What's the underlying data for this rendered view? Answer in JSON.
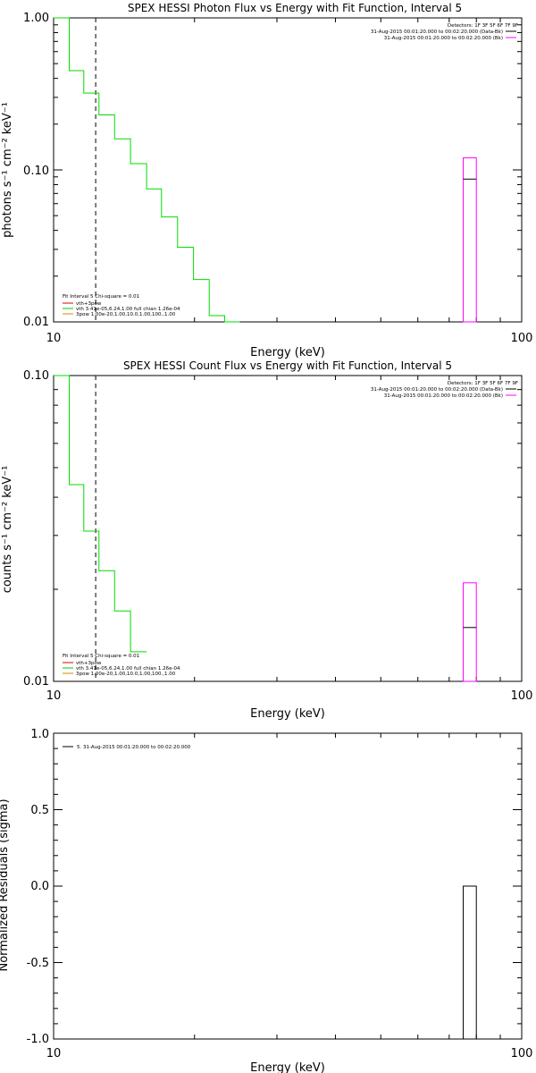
{
  "colors": {
    "background": "#ffffff",
    "axes": "#000000",
    "data": "#00dd00",
    "background_model": "#ff00ff",
    "fit": "#000000",
    "legend_red": "#dd0000",
    "legend_green": "#00cc00",
    "legend_orange": "#dd8800"
  },
  "chart_data": [
    {
      "type": "line",
      "title": "SPEX HESSI Photon Flux vs Energy with Fit Function, Interval 5",
      "xlabel": "Energy (keV)",
      "ylabel": "photons s⁻¹ cm⁻² keV⁻¹",
      "xscale": "log",
      "yscale": "log",
      "xlim": [
        10,
        100
      ],
      "ylim": [
        0.01,
        1.0
      ],
      "xticks": [
        "10",
        "100"
      ],
      "yticks": [
        "0.01",
        "0.10",
        "1.00"
      ],
      "vline_x": 12.3,
      "detectors_text": "Detectors: 1F 3F 5F 6F 7F 9F",
      "top_legend": [
        {
          "text": "31-Aug-2015 00:01:20.000 to 00:02:20.000 (Data-Bk)",
          "color": "#000000"
        },
        {
          "text": "31-Aug-2015 00:01:20.000 to 00:02:20.000 (Bk)",
          "color": "#ff00ff"
        }
      ],
      "fit_text": [
        "Fit Interval 5   Chi-square = 0.01",
        "vth+3pow",
        "vth 3.41e-05,6.24,1.00   full chian 1.26e-04",
        "3pow 1.00e-20,1.00,10.0,1.00,100.,1.00"
      ],
      "fit_colors": [
        "#000000",
        "#dd0000",
        "#00cc00",
        "#dd8800"
      ],
      "series": [
        {
          "edges": [
            10.0,
            10.8,
            11.6,
            12.5,
            13.5,
            14.6,
            15.8,
            17.0,
            18.4,
            19.9,
            21.5,
            23.2,
            25.0
          ],
          "values": [
            1.0,
            0.45,
            0.32,
            0.23,
            0.16,
            0.11,
            0.075,
            0.049,
            0.031,
            0.019,
            0.011,
            0.0095,
            0.0095
          ],
          "color": "#00dd00"
        }
      ],
      "bk_bar": {
        "x0": 75.0,
        "x1": 80.0,
        "top": 0.12,
        "mid": 0.087
      }
    },
    {
      "type": "line",
      "title": "SPEX HESSI Count Flux vs Energy with Fit Function, Interval 5",
      "xlabel": "Energy (keV)",
      "ylabel": "counts s⁻¹ cm⁻² keV⁻¹",
      "xscale": "log",
      "yscale": "log",
      "xlim": [
        10,
        100
      ],
      "ylim": [
        0.01,
        0.1
      ],
      "xticks": [
        "10",
        "100"
      ],
      "yticks": [
        "0.01",
        "0.10"
      ],
      "vline_x": 12.3,
      "detectors_text": "Detectors: 1F 3F 5F 6F 7F 9F",
      "top_legend": [
        {
          "text": "31-Aug-2015 00:01:20.000 to 00:02:20.000 (Data-Bk)",
          "color": "#000000"
        },
        {
          "text": "31-Aug-2015 00:01:20.000 to 00:02:20.000 (Bk)",
          "color": "#ff00ff"
        }
      ],
      "fit_text": [
        "Fit Interval 5   Chi-square = 0.01",
        "vth+3pow",
        "vth 3.41e-05,6.24,1.00   full chian 1.26e-04",
        "3pow 1.00e-20,1.00,10.0,1.00,100.,1.00"
      ],
      "fit_colors": [
        "#000000",
        "#dd0000",
        "#00cc00",
        "#dd8800"
      ],
      "series": [
        {
          "edges": [
            10.0,
            10.8,
            11.6,
            12.5,
            13.5,
            14.6,
            15.8
          ],
          "values": [
            0.1,
            0.044,
            0.031,
            0.023,
            0.017,
            0.0125
          ],
          "color": "#00dd00"
        }
      ],
      "bk_bar": {
        "x0": 75.0,
        "x1": 80.0,
        "top": 0.021,
        "mid": 0.015
      }
    },
    {
      "type": "line",
      "title": "",
      "xlabel": "Energy (keV)",
      "ylabel": "Normalized Residuals (sigma)",
      "xscale": "log",
      "yscale": "linear",
      "xlim": [
        10,
        100
      ],
      "ylim": [
        -1.0,
        1.0
      ],
      "xticks": [
        "10",
        "100"
      ],
      "yticks": [
        "-1.0",
        "-0.5",
        "0.0",
        "0.5",
        "1.0"
      ],
      "top_legend": [
        {
          "text": "5. 31-Aug-2015 00:01:20.000 to 00:02:20.000",
          "color": "#000000"
        }
      ],
      "resid_bar": {
        "x0": 75.0,
        "x1": 80.0,
        "top": 0.0,
        "bottom": -1.0
      }
    }
  ]
}
